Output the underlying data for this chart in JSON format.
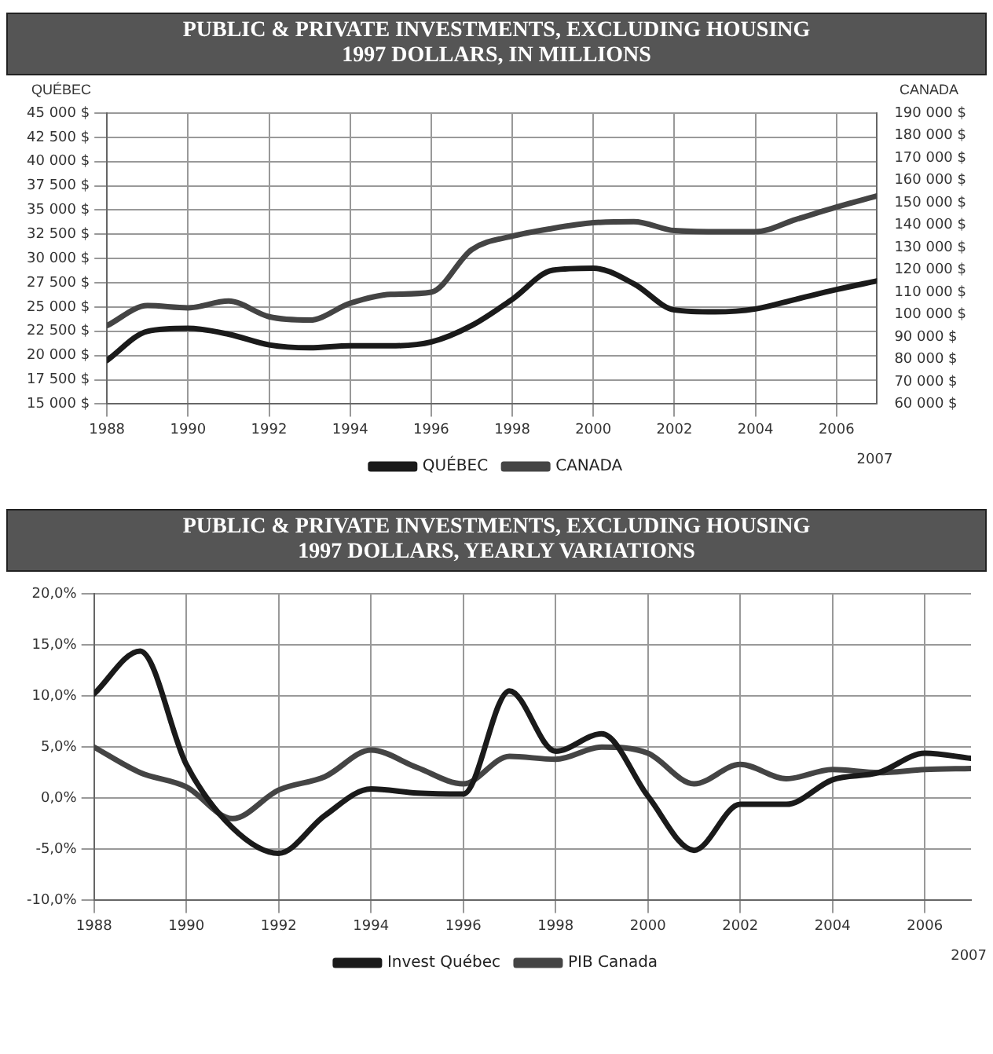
{
  "chart_data": [
    {
      "type": "line",
      "title": "PUBLIC & PRIVATE INVESTMENTS, EXCLUDING HOUSING",
      "subtitle": "1997 DOLLARS, IN MILLIONS",
      "ylabel": "QUÉBEC",
      "y2label": "CANADA",
      "x": [
        1988,
        1989,
        1990,
        1991,
        1992,
        1993,
        1994,
        1995,
        1996,
        1997,
        1998,
        1999,
        2000,
        2001,
        2002,
        2003,
        2004,
        2005,
        2006,
        2007
      ],
      "series": [
        {
          "name": "QUÉBEC",
          "color": "#1a1a1a",
          "values": [
            19500,
            22500,
            22800,
            22200,
            21100,
            20800,
            21000,
            21000,
            21400,
            23100,
            25800,
            28800,
            29000,
            27400,
            24700,
            24500,
            24800,
            25800,
            26800,
            27700
          ]
        },
        {
          "name": "CANADA",
          "color": "#444444",
          "axis": "y2",
          "values": [
            95000,
            104000,
            103000,
            106000,
            99000,
            97500,
            105000,
            109000,
            110000,
            129000,
            135000,
            138500,
            141000,
            141500,
            137500,
            137000,
            137000,
            142500,
            148000,
            153000
          ]
        }
      ],
      "xlim": [
        1988,
        2007
      ],
      "xticks": [
        1988,
        1990,
        1992,
        1994,
        1996,
        1998,
        2000,
        2002,
        2004,
        2006
      ],
      "annotations": [
        "2007"
      ],
      "ylim": [
        15000,
        45000
      ],
      "yticks": [
        {
          "value": 15000,
          "label": "15 000 $"
        },
        {
          "value": 17500,
          "label": "17 500 $"
        },
        {
          "value": 20000,
          "label": "20 000 $"
        },
        {
          "value": 22500,
          "label": "22 500 $"
        },
        {
          "value": 25000,
          "label": "25 000 $"
        },
        {
          "value": 27500,
          "label": "27 500 $"
        },
        {
          "value": 30000,
          "label": "30 000 $"
        },
        {
          "value": 32500,
          "label": "32 500 $"
        },
        {
          "value": 35000,
          "label": "35 000 $"
        },
        {
          "value": 37500,
          "label": "37 500 $"
        },
        {
          "value": 40000,
          "label": "40 000 $"
        },
        {
          "value": 42500,
          "label": "42 500 $"
        },
        {
          "value": 45000,
          "label": "45 000 $"
        }
      ],
      "y2lim": [
        60000,
        190000
      ],
      "y2ticks": [
        {
          "value": 60000,
          "label": "60 000 $"
        },
        {
          "value": 70000,
          "label": "70 000 $"
        },
        {
          "value": 80000,
          "label": "80 000 $"
        },
        {
          "value": 90000,
          "label": "90 000 $"
        },
        {
          "value": 100000,
          "label": "100 000 $"
        },
        {
          "value": 110000,
          "label": "110 000 $"
        },
        {
          "value": 120000,
          "label": "120 000 $"
        },
        {
          "value": 130000,
          "label": "130 000 $"
        },
        {
          "value": 140000,
          "label": "140 000 $"
        },
        {
          "value": 150000,
          "label": "150 000 $"
        },
        {
          "value": 160000,
          "label": "160 000 $"
        },
        {
          "value": 170000,
          "label": "170 000 $"
        },
        {
          "value": 180000,
          "label": "180 000 $"
        },
        {
          "value": 190000,
          "label": "190 000 $"
        }
      ],
      "grid": true,
      "legend": "bottom",
      "marker": "none",
      "line_style": "solid"
    },
    {
      "type": "line",
      "title": "PUBLIC & PRIVATE INVESTMENTS, EXCLUDING HOUSING",
      "subtitle": "1997 DOLLARS, YEARLY VARIATIONS",
      "x": [
        1988,
        1989,
        1990,
        1991,
        1992,
        1993,
        1994,
        1995,
        1996,
        1997,
        1998,
        1999,
        2000,
        2001,
        2002,
        2003,
        2004,
        2005,
        2006,
        2007
      ],
      "series": [
        {
          "name": "Invest Québec",
          "color": "#1a1a1a",
          "values": [
            10.2,
            14.4,
            3.3,
            -2.9,
            -5.4,
            -1.7,
            0.9,
            0.5,
            0.4,
            10.5,
            4.6,
            6.3,
            0.2,
            -5.1,
            -0.6,
            -0.6,
            1.8,
            2.5,
            4.4,
            3.9
          ]
        },
        {
          "name": "PIB Canada",
          "color": "#444444",
          "values": [
            5.0,
            2.5,
            1.1,
            -2.0,
            0.8,
            2.1,
            4.7,
            3.0,
            1.4,
            4.1,
            3.8,
            5.0,
            4.4,
            1.4,
            3.3,
            1.9,
            2.8,
            2.5,
            2.8,
            2.9
          ]
        }
      ],
      "xlim": [
        1988,
        2007
      ],
      "xticks": [
        1988,
        1990,
        1992,
        1994,
        1996,
        1998,
        2000,
        2002,
        2004,
        2006
      ],
      "annotations": [
        "2007"
      ],
      "ylim": [
        -10,
        20
      ],
      "yticks": [
        {
          "value": -10,
          "label": "-10,0%"
        },
        {
          "value": -5,
          "label": "-5,0%"
        },
        {
          "value": 0,
          "label": "0,0%"
        },
        {
          "value": 5,
          "label": "5,0%"
        },
        {
          "value": 10,
          "label": "10,0%"
        },
        {
          "value": 15,
          "label": "15,0%"
        },
        {
          "value": 20,
          "label": "20,0%"
        }
      ],
      "grid": true,
      "legend": "bottom",
      "marker": "none",
      "line_style": "solid"
    }
  ]
}
